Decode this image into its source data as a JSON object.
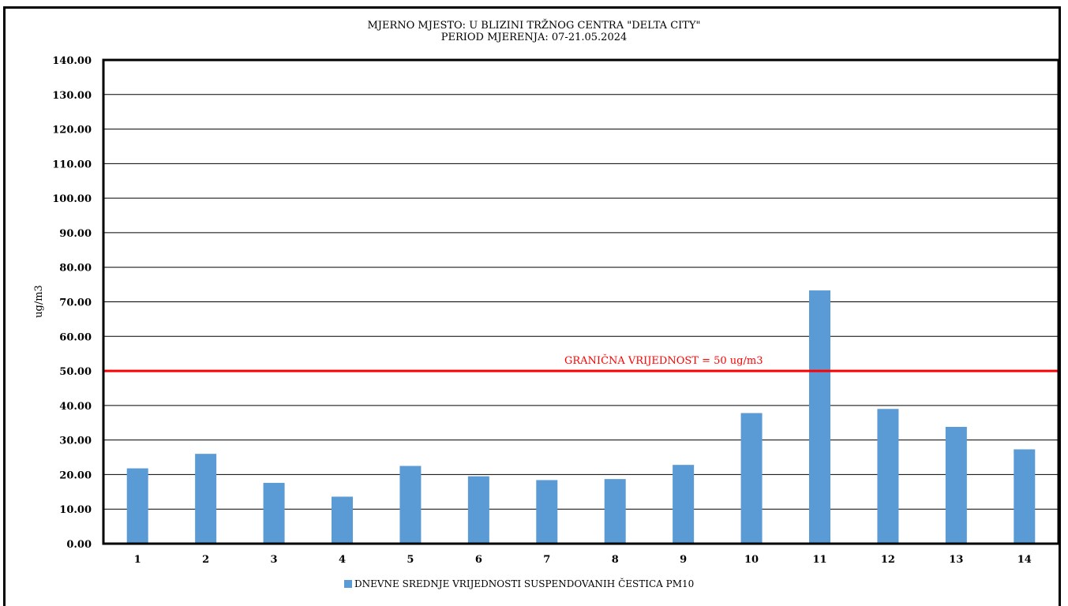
{
  "chart_data": {
    "type": "bar",
    "title": "MJERNO MJESTO: U BLIZINI TRŽNOG CENTRA \"DELTA CITY\"",
    "subtitle": "PERIOD MJERENJA: 07-21.05.2024",
    "ylabel": "ug/m3",
    "xlabel": "",
    "ylim": [
      0,
      140
    ],
    "ytick_step": 10,
    "ytick_labels": [
      "0.00",
      "10.00",
      "20.00",
      "30.00",
      "40.00",
      "50.00",
      "60.00",
      "70.00",
      "80.00",
      "90.00",
      "100.00",
      "110.00",
      "120.00",
      "130.00",
      "140.00"
    ],
    "grid": true,
    "categories": [
      "1",
      "2",
      "3",
      "4",
      "5",
      "6",
      "7",
      "8",
      "9",
      "10",
      "11",
      "12",
      "13",
      "14"
    ],
    "series": [
      {
        "name": "DNEVNE SREDNJE VRIJEDNOSTI SUSPENDOVANIH ČESTICA PM10",
        "color": "#5b9bd5",
        "values": [
          21.8,
          26.0,
          17.6,
          13.6,
          22.5,
          19.5,
          18.4,
          18.7,
          22.8,
          37.8,
          73.3,
          39.0,
          33.8,
          27.3
        ]
      }
    ],
    "threshold": {
      "value": 50,
      "label": "GRANIČNA VRIJEDNOST = 50 ug/m3",
      "color": "#ff0000"
    },
    "legend_position": "bottom"
  }
}
